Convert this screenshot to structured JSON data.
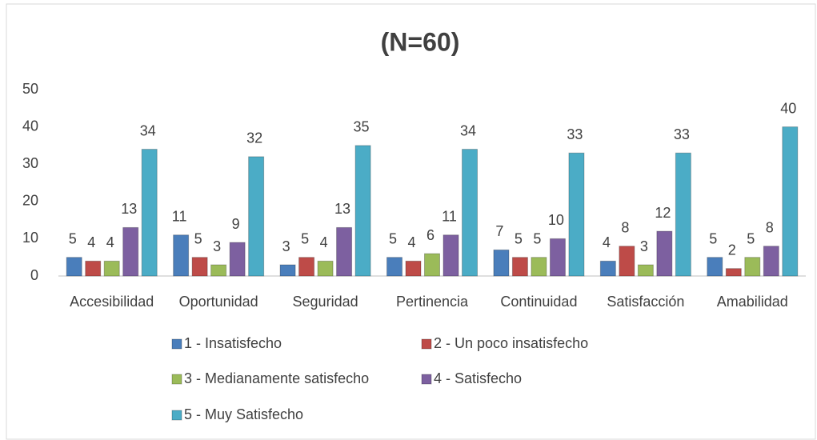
{
  "chart_data": {
    "type": "bar",
    "title": "(N=60)",
    "categories": [
      "Accesibilidad",
      "Oportunidad",
      "Seguridad",
      "Pertinencia",
      "Continuidad",
      "Satisfacción",
      "Amabilidad"
    ],
    "series": [
      {
        "name": "1 - Insatisfecho",
        "color": "#4a7ebb",
        "values": [
          5,
          11,
          3,
          5,
          7,
          4,
          5
        ]
      },
      {
        "name": "2 -  Un poco insatisfecho",
        "color": "#be4b48",
        "values": [
          4,
          5,
          5,
          4,
          5,
          8,
          2
        ]
      },
      {
        "name": "3 -  Medianamente satisfecho",
        "color": "#9bbb59",
        "values": [
          4,
          3,
          4,
          6,
          5,
          3,
          5
        ]
      },
      {
        "name": "4 - Satisfecho",
        "color": "#7d60a0",
        "values": [
          13,
          9,
          13,
          11,
          10,
          12,
          8
        ]
      },
      {
        "name": "5 -  Muy Satisfecho",
        "color": "#4bacc6",
        "values": [
          34,
          32,
          35,
          34,
          33,
          33,
          40
        ]
      }
    ],
    "ylim": [
      0,
      50
    ],
    "yticks": [
      0,
      10,
      20,
      30,
      40,
      50
    ],
    "grid": false
  }
}
